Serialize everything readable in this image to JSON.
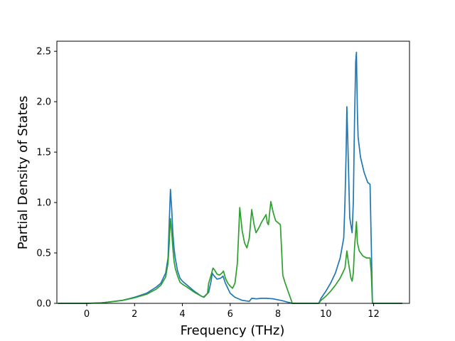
{
  "chart_data": {
    "type": "line",
    "xlabel": "Frequency (THz)",
    "ylabel": "Partial Density of States",
    "xlim": [
      -1.25,
      13.5
    ],
    "ylim": [
      0.0,
      2.6
    ],
    "xticks": [
      {
        "value": 0,
        "label": "0"
      },
      {
        "value": 2,
        "label": "2"
      },
      {
        "value": 4,
        "label": "4"
      },
      {
        "value": 6,
        "label": "6"
      },
      {
        "value": 8,
        "label": "8"
      },
      {
        "value": 10,
        "label": "10"
      },
      {
        "value": 12,
        "label": "12"
      }
    ],
    "yticks": [
      {
        "value": 0.0,
        "label": "0.0"
      },
      {
        "value": 0.5,
        "label": "0.5"
      },
      {
        "value": 1.0,
        "label": "1.0"
      },
      {
        "value": 1.5,
        "label": "1.5"
      },
      {
        "value": 2.0,
        "label": "2.0"
      },
      {
        "value": 2.5,
        "label": "2.5"
      }
    ],
    "grid": false,
    "legend": "none",
    "series": [
      {
        "color": "#1f77b4",
        "points": [
          [
            -1.2,
            0
          ],
          [
            0,
            0
          ],
          [
            0.6,
            0.005
          ],
          [
            1,
            0.015
          ],
          [
            1.5,
            0.03
          ],
          [
            2,
            0.06
          ],
          [
            2.5,
            0.1
          ],
          [
            2.9,
            0.16
          ],
          [
            3.1,
            0.2
          ],
          [
            3.3,
            0.3
          ],
          [
            3.4,
            0.45
          ],
          [
            3.45,
            0.8
          ],
          [
            3.5,
            1.13
          ],
          [
            3.55,
            0.95
          ],
          [
            3.6,
            0.7
          ],
          [
            3.65,
            0.55
          ],
          [
            3.7,
            0.45
          ],
          [
            3.8,
            0.32
          ],
          [
            3.9,
            0.25
          ],
          [
            4,
            0.22
          ],
          [
            4.2,
            0.18
          ],
          [
            4.5,
            0.12
          ],
          [
            4.8,
            0.07
          ],
          [
            4.9,
            0.06
          ],
          [
            5.1,
            0.11
          ],
          [
            5.2,
            0.22
          ],
          [
            5.25,
            0.3
          ],
          [
            5.3,
            0.28
          ],
          [
            5.45,
            0.24
          ],
          [
            5.6,
            0.25
          ],
          [
            5.7,
            0.27
          ],
          [
            5.8,
            0.2
          ],
          [
            5.9,
            0.15
          ],
          [
            6,
            0.1
          ],
          [
            6.2,
            0.06
          ],
          [
            6.5,
            0.03
          ],
          [
            6.8,
            0.02
          ],
          [
            6.9,
            0.05
          ],
          [
            7.1,
            0.045
          ],
          [
            7.3,
            0.05
          ],
          [
            7.5,
            0.05
          ],
          [
            7.8,
            0.045
          ],
          [
            8,
            0.035
          ],
          [
            8.2,
            0.025
          ],
          [
            8.4,
            0.012
          ],
          [
            8.6,
            0
          ],
          [
            9.7,
            0
          ],
          [
            9.8,
            0.05
          ],
          [
            10,
            0.12
          ],
          [
            10.2,
            0.2
          ],
          [
            10.4,
            0.3
          ],
          [
            10.6,
            0.45
          ],
          [
            10.75,
            0.65
          ],
          [
            10.8,
            1
          ],
          [
            10.85,
            1.5
          ],
          [
            10.88,
            1.95
          ],
          [
            10.92,
            1.6
          ],
          [
            11,
            0.85
          ],
          [
            11.1,
            0.7
          ],
          [
            11.15,
            1
          ],
          [
            11.2,
            1.8
          ],
          [
            11.25,
            2.4
          ],
          [
            11.28,
            2.49
          ],
          [
            11.32,
            1.9
          ],
          [
            11.35,
            1.65
          ],
          [
            11.45,
            1.45
          ],
          [
            11.6,
            1.3
          ],
          [
            11.75,
            1.2
          ],
          [
            11.85,
            1.18
          ],
          [
            11.9,
            0.6
          ],
          [
            11.95,
            0
          ],
          [
            13.2,
            0
          ]
        ]
      },
      {
        "color": "#2ca02c",
        "points": [
          [
            -1.2,
            0
          ],
          [
            0,
            0
          ],
          [
            0.6,
            0.005
          ],
          [
            1,
            0.015
          ],
          [
            1.5,
            0.03
          ],
          [
            2,
            0.055
          ],
          [
            2.5,
            0.09
          ],
          [
            2.9,
            0.14
          ],
          [
            3.1,
            0.18
          ],
          [
            3.3,
            0.26
          ],
          [
            3.4,
            0.4
          ],
          [
            3.45,
            0.6
          ],
          [
            3.5,
            0.84
          ],
          [
            3.55,
            0.72
          ],
          [
            3.6,
            0.55
          ],
          [
            3.65,
            0.42
          ],
          [
            3.7,
            0.35
          ],
          [
            3.8,
            0.27
          ],
          [
            3.9,
            0.21
          ],
          [
            4,
            0.19
          ],
          [
            4.2,
            0.16
          ],
          [
            4.5,
            0.11
          ],
          [
            4.8,
            0.07
          ],
          [
            4.9,
            0.065
          ],
          [
            5.05,
            0.1
          ],
          [
            5.1,
            0.2
          ],
          [
            5.2,
            0.28
          ],
          [
            5.28,
            0.35
          ],
          [
            5.35,
            0.33
          ],
          [
            5.45,
            0.29
          ],
          [
            5.55,
            0.28
          ],
          [
            5.65,
            0.3
          ],
          [
            5.72,
            0.32
          ],
          [
            5.8,
            0.25
          ],
          [
            5.9,
            0.2
          ],
          [
            6,
            0.17
          ],
          [
            6.1,
            0.15
          ],
          [
            6.2,
            0.2
          ],
          [
            6.3,
            0.4
          ],
          [
            6.4,
            0.95
          ],
          [
            6.5,
            0.72
          ],
          [
            6.6,
            0.6
          ],
          [
            6.7,
            0.55
          ],
          [
            6.8,
            0.65
          ],
          [
            6.9,
            0.93
          ],
          [
            7,
            0.78
          ],
          [
            7.08,
            0.7
          ],
          [
            7.2,
            0.75
          ],
          [
            7.3,
            0.8
          ],
          [
            7.4,
            0.84
          ],
          [
            7.5,
            0.88
          ],
          [
            7.55,
            0.8
          ],
          [
            7.6,
            0.78
          ],
          [
            7.65,
            0.9
          ],
          [
            7.7,
            1.01
          ],
          [
            7.8,
            0.9
          ],
          [
            7.9,
            0.82
          ],
          [
            8,
            0.8
          ],
          [
            8.1,
            0.78
          ],
          [
            8.2,
            0.28
          ],
          [
            8.3,
            0.2
          ],
          [
            8.45,
            0.1
          ],
          [
            8.6,
            0
          ],
          [
            9.7,
            0
          ],
          [
            9.8,
            0.03
          ],
          [
            10,
            0.07
          ],
          [
            10.2,
            0.12
          ],
          [
            10.4,
            0.18
          ],
          [
            10.6,
            0.25
          ],
          [
            10.8,
            0.35
          ],
          [
            10.88,
            0.52
          ],
          [
            10.95,
            0.4
          ],
          [
            11.05,
            0.25
          ],
          [
            11.1,
            0.22
          ],
          [
            11.15,
            0.3
          ],
          [
            11.2,
            0.55
          ],
          [
            11.28,
            0.81
          ],
          [
            11.32,
            0.6
          ],
          [
            11.4,
            0.52
          ],
          [
            11.55,
            0.47
          ],
          [
            11.7,
            0.45
          ],
          [
            11.85,
            0.45
          ],
          [
            11.9,
            0.3
          ],
          [
            11.95,
            0
          ],
          [
            13.2,
            0
          ]
        ]
      }
    ]
  }
}
